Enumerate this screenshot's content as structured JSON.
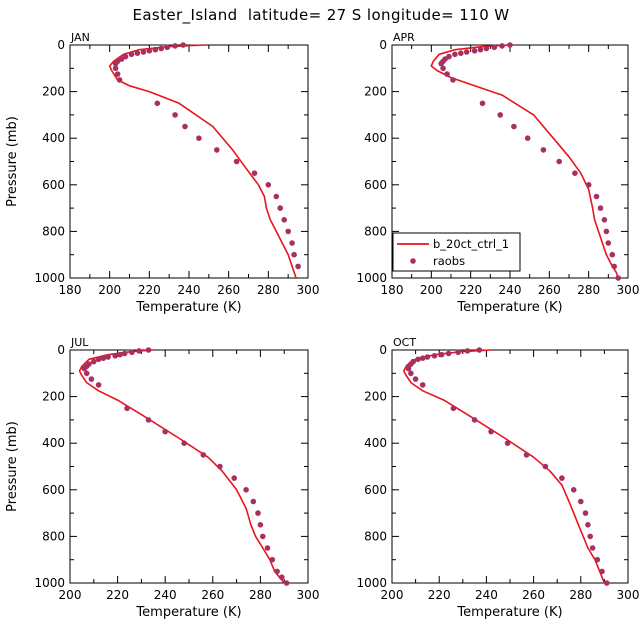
{
  "figure": {
    "title": "Easter_Island  latitude= 27 S longitude= 110 W",
    "colors": {
      "model": "#e8141e",
      "obs": "#a83060",
      "axis": "#000000"
    }
  },
  "chart_data": [
    {
      "type": "line",
      "title": "JAN",
      "xlabel": "Temperature (K)",
      "ylabel": "Pressure (mb)",
      "xlim": [
        180,
        300
      ],
      "ylim": [
        1000,
        0
      ],
      "xticks": [
        180,
        200,
        220,
        240,
        260,
        280,
        300
      ],
      "yticks": [
        0,
        200,
        400,
        600,
        800,
        1000
      ],
      "series": [
        {
          "name": "b_20ct_ctrl_1",
          "style": "line",
          "x": [
            248,
            230,
            215,
            207,
            202,
            200,
            201,
            204,
            210,
            220,
            235,
            252,
            262,
            268,
            275,
            278,
            279,
            281,
            284,
            287,
            290,
            292,
            294
          ],
          "y": [
            0,
            7,
            20,
            40,
            70,
            90,
            110,
            150,
            175,
            200,
            250,
            350,
            450,
            520,
            600,
            650,
            700,
            750,
            800,
            850,
            900,
            950,
            1000
          ]
        },
        {
          "name": "raobs",
          "style": "points",
          "x": [
            237,
            233,
            229,
            226,
            223,
            220,
            217,
            214,
            211,
            208,
            206,
            204,
            203,
            203,
            204,
            205,
            224,
            233,
            238,
            245,
            254,
            264,
            273,
            280,
            284,
            286,
            288,
            290,
            292,
            293,
            295
          ],
          "y": [
            0,
            4,
            10,
            15,
            20,
            25,
            30,
            35,
            40,
            50,
            60,
            70,
            80,
            100,
            125,
            150,
            250,
            300,
            350,
            400,
            450,
            500,
            550,
            600,
            650,
            700,
            750,
            800,
            850,
            900,
            950
          ]
        }
      ]
    },
    {
      "type": "line",
      "title": "APR",
      "xlabel": "Temperature (K)",
      "ylabel": "",
      "xlim": [
        180,
        300
      ],
      "ylim": [
        1000,
        0
      ],
      "xticks": [
        180,
        200,
        220,
        240,
        260,
        280,
        300
      ],
      "yticks": [
        0,
        200,
        400,
        600,
        800,
        1000
      ],
      "legend": {
        "location": "lower-left",
        "entries": [
          "b_20ct_ctrl_1",
          "raobs"
        ]
      },
      "series": [
        {
          "name": "b_20ct_ctrl_1",
          "style": "line",
          "x": [
            240,
            226,
            212,
            204,
            201,
            200,
            203,
            210,
            222,
            236,
            252,
            262,
            270,
            276,
            280,
            282,
            283,
            285,
            287,
            289,
            292,
            294,
            295
          ],
          "y": [
            0,
            7,
            20,
            40,
            70,
            90,
            110,
            140,
            175,
            215,
            300,
            400,
            480,
            550,
            620,
            700,
            750,
            800,
            850,
            900,
            950,
            975,
            1000
          ]
        },
        {
          "name": "raobs",
          "style": "points",
          "x": [
            240,
            236,
            232,
            228,
            225,
            222,
            218,
            215,
            212,
            209,
            207,
            206,
            205,
            206,
            208,
            211,
            226,
            235,
            242,
            249,
            257,
            265,
            273,
            280,
            284,
            286,
            288,
            289,
            290,
            292,
            293,
            295
          ],
          "y": [
            0,
            4,
            10,
            15,
            20,
            25,
            30,
            35,
            40,
            50,
            60,
            70,
            80,
            100,
            125,
            150,
            250,
            300,
            350,
            400,
            450,
            500,
            550,
            600,
            650,
            700,
            750,
            800,
            850,
            900,
            950,
            1000
          ]
        }
      ]
    },
    {
      "type": "line",
      "title": "JUL",
      "xlabel": "Temperature (K)",
      "ylabel": "Pressure (mb)",
      "xlim": [
        200,
        300
      ],
      "ylim": [
        1000,
        0
      ],
      "xticks": [
        200,
        220,
        240,
        260,
        280,
        300
      ],
      "yticks": [
        0,
        200,
        400,
        600,
        800,
        1000
      ],
      "series": [
        {
          "name": "b_20ct_ctrl_1",
          "style": "line",
          "x": [
            235,
            226,
            216,
            208,
            205,
            204,
            205,
            207,
            212,
            220,
            232,
            246,
            258,
            264,
            270,
            274,
            276,
            278,
            281,
            284,
            286,
            288,
            290
          ],
          "y": [
            0,
            7,
            20,
            40,
            70,
            90,
            110,
            140,
            175,
            215,
            290,
            380,
            460,
            520,
            600,
            680,
            750,
            800,
            850,
            900,
            950,
            975,
            1000
          ]
        },
        {
          "name": "raobs",
          "style": "points",
          "x": [
            233,
            229,
            226,
            223,
            221,
            219,
            216,
            214,
            212,
            210,
            208,
            207,
            206,
            207,
            209,
            212,
            224,
            233,
            240,
            248,
            256,
            263,
            269,
            274,
            277,
            279,
            280,
            281,
            283,
            285,
            287,
            289,
            291
          ],
          "y": [
            0,
            4,
            10,
            15,
            20,
            25,
            30,
            35,
            40,
            50,
            60,
            70,
            80,
            100,
            125,
            150,
            250,
            300,
            350,
            400,
            450,
            500,
            550,
            600,
            650,
            700,
            750,
            800,
            850,
            900,
            950,
            975,
            1000
          ]
        }
      ]
    },
    {
      "type": "line",
      "title": "OCT",
      "xlabel": "Temperature (K)",
      "ylabel": "",
      "xlim": [
        200,
        300
      ],
      "ylim": [
        1000,
        0
      ],
      "xticks": [
        200,
        220,
        240,
        260,
        280,
        300
      ],
      "yticks": [
        0,
        200,
        400,
        600,
        800,
        1000
      ],
      "series": [
        {
          "name": "b_20ct_ctrl_1",
          "style": "line",
          "x": [
            242,
            230,
            218,
            210,
            206,
            205,
            206,
            208,
            213,
            222,
            234,
            248,
            260,
            267,
            272,
            275,
            277,
            279,
            281,
            283,
            286,
            288,
            290
          ],
          "y": [
            0,
            7,
            20,
            40,
            70,
            90,
            110,
            140,
            175,
            215,
            290,
            380,
            460,
            520,
            580,
            650,
            700,
            750,
            800,
            850,
            900,
            950,
            1000
          ]
        },
        {
          "name": "raobs",
          "style": "points",
          "x": [
            237,
            232,
            228,
            224,
            221,
            218,
            215,
            213,
            211,
            209,
            208,
            207,
            207,
            208,
            210,
            213,
            226,
            235,
            242,
            249,
            257,
            265,
            272,
            277,
            280,
            282,
            283,
            284,
            285,
            287,
            289,
            291
          ],
          "y": [
            0,
            4,
            10,
            15,
            20,
            25,
            30,
            35,
            40,
            50,
            60,
            70,
            80,
            100,
            125,
            150,
            250,
            300,
            350,
            400,
            450,
            500,
            550,
            600,
            650,
            700,
            750,
            800,
            850,
            900,
            950,
            1000
          ]
        }
      ]
    }
  ]
}
